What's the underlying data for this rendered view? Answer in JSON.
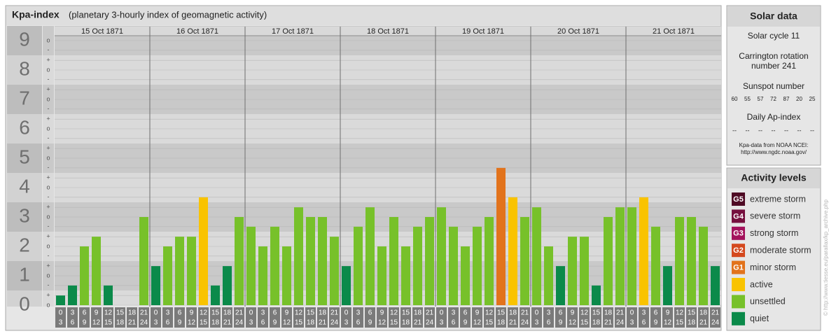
{
  "header": {
    "title": "Kpa-index",
    "subtitle": "(planetary 3-hourly index of geomagnetic activity)"
  },
  "chart_data": {
    "type": "bar",
    "ylim": [
      0,
      9.5
    ],
    "yticks": [
      0,
      1,
      2,
      3,
      4,
      5,
      6,
      7,
      8,
      9
    ],
    "minor_yticks": [
      {
        "value": 0,
        "label": "o"
      },
      {
        "value": 0.33,
        "label": "+"
      },
      {
        "value": 0.67,
        "label": "-"
      },
      {
        "value": 1,
        "label": "o"
      },
      {
        "value": 1.33,
        "label": "+"
      },
      {
        "value": 1.67,
        "label": "-"
      },
      {
        "value": 2,
        "label": "o"
      },
      {
        "value": 2.33,
        "label": "+"
      },
      {
        "value": 2.67,
        "label": "-"
      },
      {
        "value": 3,
        "label": "o"
      },
      {
        "value": 3.33,
        "label": "+"
      },
      {
        "value": 3.67,
        "label": "-"
      },
      {
        "value": 4,
        "label": "o"
      },
      {
        "value": 4.33,
        "label": "+"
      },
      {
        "value": 4.67,
        "label": "-"
      },
      {
        "value": 5,
        "label": "o"
      },
      {
        "value": 5.33,
        "label": "+"
      },
      {
        "value": 5.67,
        "label": "-"
      },
      {
        "value": 6,
        "label": "o"
      },
      {
        "value": 6.33,
        "label": "+"
      },
      {
        "value": 6.67,
        "label": "-"
      },
      {
        "value": 7,
        "label": "o"
      },
      {
        "value": 7.33,
        "label": "+"
      },
      {
        "value": 7.67,
        "label": "-"
      },
      {
        "value": 8,
        "label": "o"
      },
      {
        "value": 8.33,
        "label": "+"
      },
      {
        "value": 8.67,
        "label": "-"
      },
      {
        "value": 9,
        "label": "o"
      }
    ],
    "hours": [
      0,
      3,
      6,
      9,
      12,
      15,
      18,
      21,
      24
    ],
    "days": [
      {
        "date": "15 Oct 1871",
        "values": [
          0.33,
          0.67,
          2,
          2.33,
          0.67,
          0,
          0,
          3
        ],
        "colors": [
          "#0b8a4a",
          "#0b8a4a",
          "#77c12a",
          "#77c12a",
          "#0b8a4a",
          "#0b8a4a",
          "#0b8a4a",
          "#77c12a"
        ]
      },
      {
        "date": "16 Oct 1871",
        "values": [
          1.33,
          2,
          2.33,
          2.33,
          3.67,
          0.67,
          1.33,
          3
        ],
        "colors": [
          "#0b8a4a",
          "#77c12a",
          "#77c12a",
          "#77c12a",
          "#f9c300",
          "#0b8a4a",
          "#0b8a4a",
          "#77c12a"
        ]
      },
      {
        "date": "17 Oct 1871",
        "values": [
          2.67,
          2,
          2.67,
          2,
          3.33,
          3,
          3,
          2.33
        ],
        "colors": [
          "#77c12a",
          "#77c12a",
          "#77c12a",
          "#77c12a",
          "#77c12a",
          "#77c12a",
          "#77c12a",
          "#77c12a"
        ]
      },
      {
        "date": "18 Oct 1871",
        "values": [
          1.33,
          2.67,
          3.33,
          2,
          3,
          2,
          2.67,
          3
        ],
        "colors": [
          "#0b8a4a",
          "#77c12a",
          "#77c12a",
          "#77c12a",
          "#77c12a",
          "#77c12a",
          "#77c12a",
          "#77c12a"
        ]
      },
      {
        "date": "19 Oct 1871",
        "values": [
          3.33,
          2.67,
          2,
          2.67,
          3,
          4.67,
          3.67,
          3
        ],
        "colors": [
          "#77c12a",
          "#77c12a",
          "#77c12a",
          "#77c12a",
          "#77c12a",
          "#e2731c",
          "#f9c300",
          "#77c12a"
        ]
      },
      {
        "date": "20 Oct 1871",
        "values": [
          3.33,
          2,
          1.33,
          2.33,
          2.33,
          0.67,
          3,
          3.33
        ],
        "colors": [
          "#77c12a",
          "#77c12a",
          "#0b8a4a",
          "#77c12a",
          "#77c12a",
          "#0b8a4a",
          "#77c12a",
          "#77c12a"
        ]
      },
      {
        "date": "21 Oct 1871",
        "values": [
          3.33,
          3.67,
          2.67,
          1.33,
          3,
          3,
          2.67,
          1.33
        ],
        "colors": [
          "#77c12a",
          "#f9c300",
          "#77c12a",
          "#0b8a4a",
          "#77c12a",
          "#77c12a",
          "#77c12a",
          "#0b8a4a"
        ]
      }
    ]
  },
  "solar_data": {
    "title": "Solar data",
    "cycle": "Solar cycle 11",
    "carrington": [
      "Carrington rotation",
      "number 241"
    ],
    "sunspot_title": "Sunspot number",
    "sunspot": [
      60,
      55,
      57,
      72,
      87,
      20,
      25
    ],
    "ap_title": "Daily Ap-index",
    "ap": [
      "--",
      "--",
      "--",
      "--",
      "--",
      "--",
      "--"
    ],
    "source": [
      "Kpa-data from NOAA NCEI:",
      "http://www.ngdc.noaa.gov/"
    ]
  },
  "activity_levels": {
    "title": "Activity levels",
    "items": [
      {
        "badge": "G5",
        "label": "extreme storm",
        "color": "#4e0a24"
      },
      {
        "badge": "G4",
        "label": "severe storm",
        "color": "#76103e"
      },
      {
        "badge": "G3",
        "label": "strong storm",
        "color": "#a3125c"
      },
      {
        "badge": "G2",
        "label": "moderate storm",
        "color": "#d4481e"
      },
      {
        "badge": "G1",
        "label": "minor storm",
        "color": "#e2731c"
      },
      {
        "label": "active",
        "color": "#f9c300"
      },
      {
        "label": "unsettled",
        "color": "#77c12a"
      },
      {
        "label": "quiet",
        "color": "#0b8a4a"
      }
    ]
  },
  "credit": "© http://www.tiesse.eu/parallax/kp_archive.php"
}
